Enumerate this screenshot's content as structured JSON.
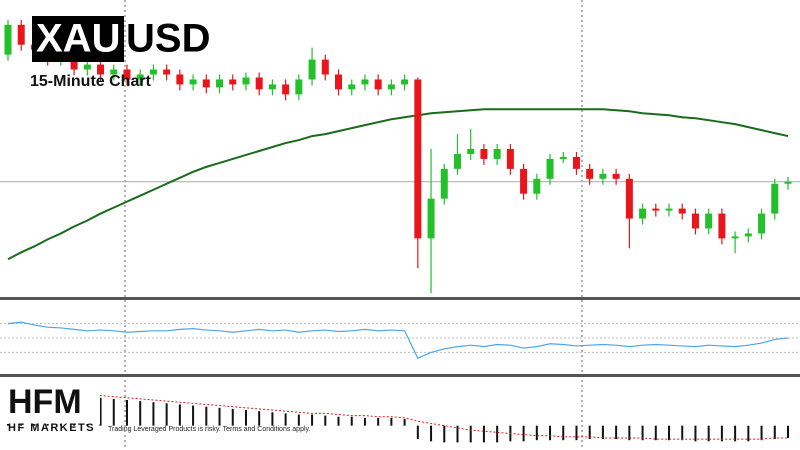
{
  "chart_data": {
    "type": "candlestick",
    "title_box": "XAU",
    "title_rest": "USD",
    "subtitle": "15-Minute Chart",
    "ylim": [
      0,
      300
    ],
    "up_color": "#22c02a",
    "down_color": "#e8161b",
    "open": [
      245,
      275,
      255,
      250,
      240,
      245,
      230,
      235,
      225,
      230,
      220,
      225,
      230,
      225,
      215,
      220,
      212,
      220,
      215,
      222,
      210,
      215,
      205,
      220,
      240,
      225,
      210,
      215,
      220,
      210,
      215,
      220,
      60,
      100,
      130,
      145,
      150,
      140,
      150,
      130,
      105,
      120,
      140,
      142,
      130,
      120,
      125,
      120,
      80,
      90,
      88,
      90,
      85,
      70,
      85,
      60,
      62,
      65,
      85,
      115
    ],
    "high": [
      280,
      280,
      260,
      255,
      250,
      250,
      240,
      240,
      235,
      235,
      230,
      235,
      235,
      230,
      225,
      225,
      225,
      225,
      227,
      227,
      220,
      220,
      225,
      252,
      245,
      230,
      220,
      225,
      225,
      220,
      225,
      222,
      150,
      135,
      165,
      170,
      155,
      155,
      155,
      135,
      125,
      145,
      147,
      147,
      135,
      130,
      130,
      125,
      95,
      95,
      95,
      95,
      90,
      90,
      90,
      67,
      70,
      90,
      120,
      122
    ],
    "low": [
      239,
      249,
      244,
      234,
      234,
      224,
      224,
      219,
      219,
      214,
      214,
      219,
      219,
      209,
      209,
      206,
      206,
      209,
      209,
      204,
      204,
      199,
      199,
      214,
      219,
      204,
      204,
      209,
      204,
      204,
      209,
      30,
      5,
      94,
      124,
      139,
      134,
      134,
      124,
      99,
      99,
      114,
      136,
      124,
      114,
      114,
      114,
      50,
      74,
      82,
      82,
      79,
      64,
      64,
      54,
      45,
      56,
      59,
      79,
      109
    ],
    "close": [
      275,
      255,
      250,
      240,
      245,
      230,
      235,
      225,
      230,
      220,
      225,
      230,
      225,
      215,
      220,
      212,
      220,
      215,
      222,
      210,
      215,
      205,
      220,
      240,
      225,
      210,
      215,
      220,
      210,
      215,
      220,
      60,
      100,
      130,
      145,
      150,
      140,
      150,
      130,
      105,
      120,
      140,
      142,
      130,
      120,
      125,
      120,
      80,
      90,
      88,
      90,
      85,
      70,
      85,
      60,
      62,
      65,
      85,
      115,
      117
    ],
    "moving_average": {
      "color": "#1a6b1a",
      "values": [
        39,
        46,
        52,
        59,
        65,
        72,
        78,
        85,
        91,
        97,
        103,
        109,
        115,
        121,
        127,
        132,
        136,
        140,
        144,
        148,
        152,
        156,
        159,
        163,
        165,
        168,
        171,
        174,
        177,
        180,
        182,
        184,
        186,
        187,
        188,
        189,
        190,
        190,
        190,
        190,
        190,
        190,
        190,
        190,
        190,
        190,
        189,
        188,
        186,
        185,
        184,
        182,
        181,
        179,
        177,
        175,
        172,
        169,
        166,
        163
      ]
    },
    "oscillator": {
      "ylim": [
        0,
        100
      ],
      "levels": [
        70,
        50,
        30
      ],
      "color": "#4da6e8",
      "values": [
        70,
        72,
        68,
        65,
        64,
        62,
        60,
        61,
        60,
        58,
        59,
        60,
        60,
        62,
        63,
        61,
        60,
        58,
        60,
        62,
        60,
        61,
        58,
        60,
        61,
        59,
        60,
        62,
        60,
        61,
        60,
        22,
        30,
        35,
        38,
        40,
        38,
        41,
        40,
        36,
        38,
        42,
        41,
        39,
        40,
        41,
        40,
        38,
        40,
        41,
        40,
        39,
        38,
        40,
        39,
        38,
        40,
        43,
        48,
        50
      ]
    },
    "histogram": {
      "ylim": [
        -20,
        40
      ],
      "color": "#111111",
      "values": [
        30,
        29,
        28,
        28,
        27,
        26,
        26,
        25,
        24,
        23,
        22,
        21,
        20,
        19,
        18,
        17,
        16,
        15,
        14,
        13,
        12,
        11,
        10,
        10,
        9,
        8,
        8,
        7,
        7,
        7,
        6,
        -12,
        -14,
        -15,
        -15,
        -15,
        -15,
        -15,
        -14,
        -14,
        -13,
        -13,
        -13,
        -13,
        -12,
        -12,
        -12,
        -13,
        -13,
        -13,
        -13,
        -13,
        -14,
        -14,
        -14,
        -14,
        -14,
        -13,
        -12,
        -11
      ],
      "signal": {
        "color": "#e8161b",
        "values": [
          34,
          33,
          32,
          31,
          30,
          29,
          28,
          27,
          26,
          25,
          24,
          23,
          22,
          21,
          20,
          19,
          18,
          17,
          16,
          15,
          14,
          13,
          12,
          11,
          11,
          10,
          9,
          9,
          8,
          8,
          7,
          4,
          2,
          0,
          -2,
          -4,
          -5,
          -6,
          -7,
          -8,
          -9,
          -9,
          -10,
          -10,
          -10,
          -11,
          -11,
          -11,
          -11,
          -12,
          -12,
          -12,
          -12,
          -12,
          -12,
          -12,
          -12,
          -12,
          -11,
          -11
        ]
      }
    }
  },
  "branding": {
    "logo": "HFM",
    "name": "HF MARKETS",
    "disclaimer": "Trading Leveraged Products is risky. Terms and Conditions apply."
  }
}
